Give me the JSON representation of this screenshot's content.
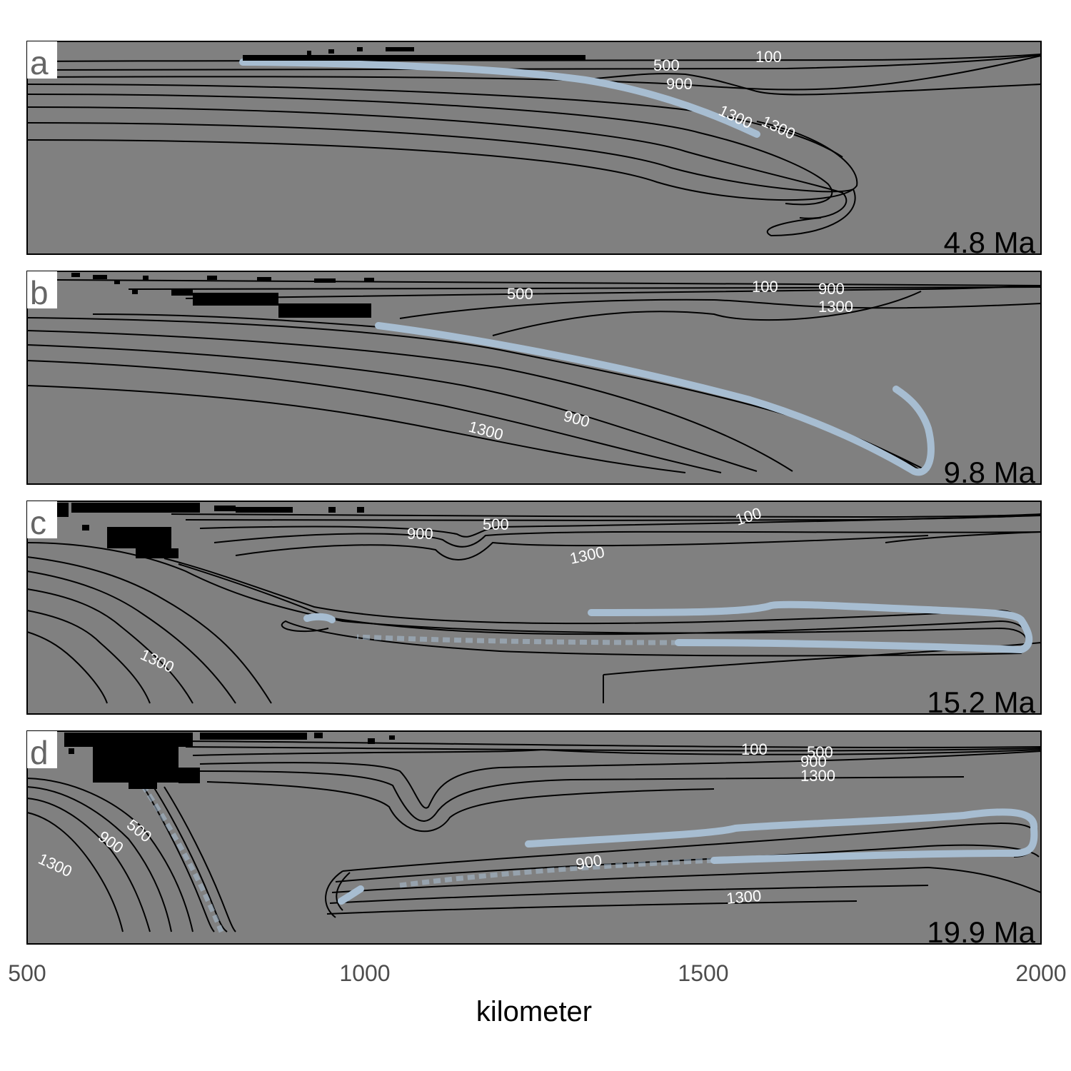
{
  "figure": {
    "xlabel": "kilometer",
    "x_ticks": [
      "500",
      "1000",
      "1500",
      "2000"
    ],
    "x_range": [
      500,
      2000
    ]
  },
  "panels": [
    {
      "letter": "a",
      "age": "4.8 Ma",
      "labels": [
        "100",
        "500",
        "900",
        "1300",
        "1300"
      ]
    },
    {
      "letter": "b",
      "age": "9.8 Ma",
      "labels": [
        "500",
        "100",
        "900",
        "1300",
        "900",
        "1300"
      ]
    },
    {
      "letter": "c",
      "age": "15.2 Ma",
      "labels": [
        "900",
        "500",
        "100",
        "1300",
        "1300"
      ]
    },
    {
      "letter": "d",
      "age": "19.9 Ma",
      "labels": [
        "100",
        "500",
        "900",
        "1300",
        "500",
        "900",
        "1300",
        "900",
        "1300"
      ]
    }
  ],
  "colors": {
    "background": "#808080",
    "slab": "#a7bdd1",
    "isotherm": "#000000",
    "label": "#ffffff"
  }
}
